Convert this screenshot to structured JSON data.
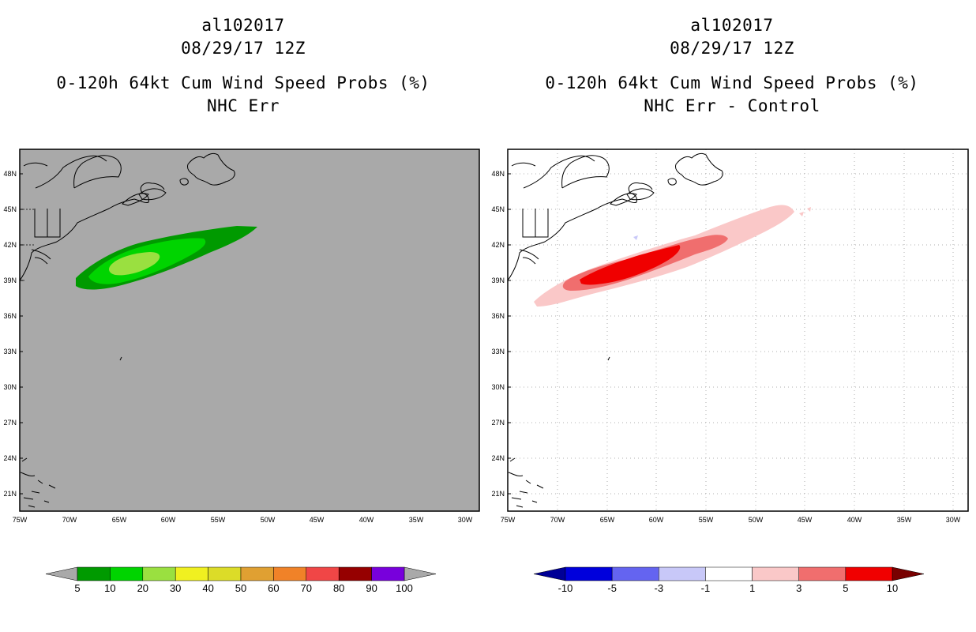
{
  "left_panel": {
    "storm_id": "al102017",
    "datetime": "08/29/17 12Z",
    "product": "0-120h 64kt Cum Wind Speed Probs (%)",
    "subtitle": "NHC Err",
    "colorbar": {
      "labels": [
        "5",
        "10",
        "20",
        "30",
        "40",
        "50",
        "60",
        "70",
        "80",
        "90",
        "100"
      ],
      "colors": [
        "#009a00",
        "#00d400",
        "#9ae040",
        "#f0f020",
        "#dcdc28",
        "#e0a032",
        "#f08228",
        "#f04646",
        "#960000",
        "#7800dc"
      ],
      "under_color": "#a9a9a9",
      "over_color": "#a9a9a9"
    }
  },
  "right_panel": {
    "storm_id": "al102017",
    "datetime": "08/29/17 12Z",
    "product": "0-120h 64kt Cum Wind Speed Probs (%)",
    "subtitle": "NHC Err - Control",
    "colorbar": {
      "labels": [
        "-10",
        "-5",
        "-3",
        "-1",
        "1",
        "3",
        "5",
        "10"
      ],
      "colors": [
        "#0000dc",
        "#6464f0",
        "#c8c8f8",
        "#ffffff",
        "#fac8c8",
        "#f06e6e",
        "#f00000"
      ],
      "under_color": "#000096",
      "over_color": "#780000"
    }
  },
  "map": {
    "lat_labels": [
      "48N",
      "45N",
      "42N",
      "39N",
      "36N",
      "33N",
      "30N",
      "27N",
      "24N",
      "21N"
    ],
    "lon_labels": [
      "75W",
      "70W",
      "65W",
      "60W",
      "55W",
      "50W",
      "45W",
      "40W",
      "35W",
      "30W"
    ],
    "background_left": "#a9a9a9"
  }
}
